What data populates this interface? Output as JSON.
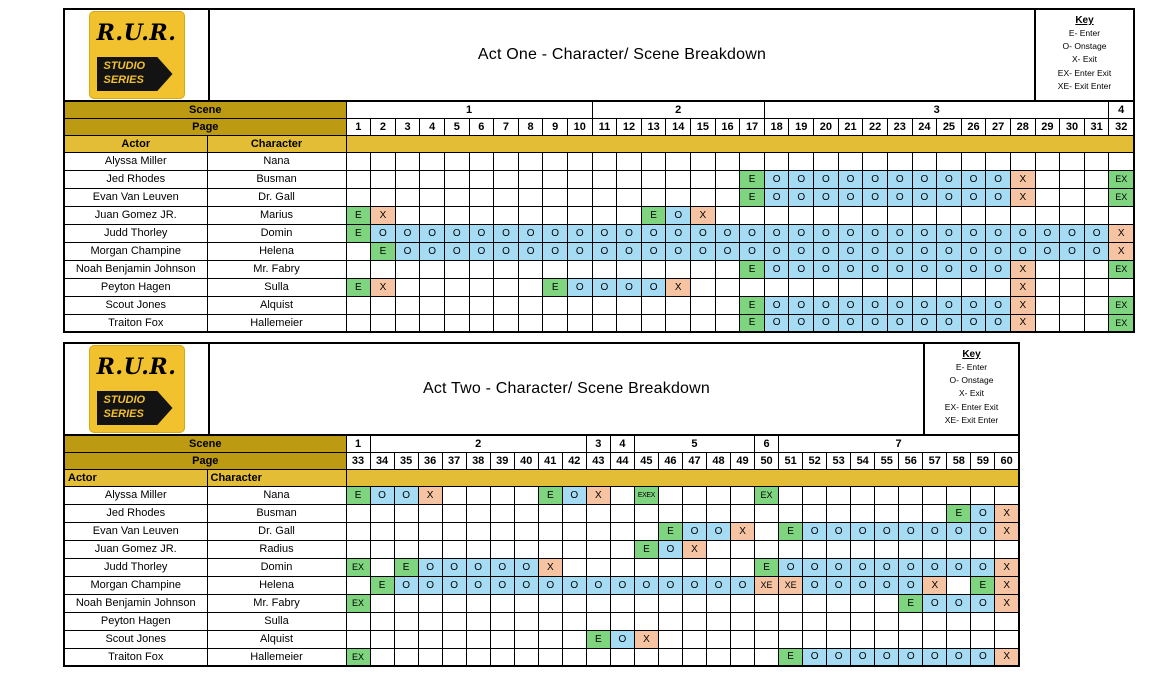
{
  "logo": {
    "title": "R.U.R.",
    "subtitle_line1": "STUDIO",
    "subtitle_line2": "SERIES"
  },
  "labels": {
    "scene": "Scene",
    "page": "Page",
    "actor": "Actor",
    "character": "Character"
  },
  "key": {
    "title": "Key",
    "entries": [
      "E- Enter",
      "O- Onstage",
      "X- Exit",
      "EX- Enter Exit",
      "XE- Exit Enter"
    ]
  },
  "colors": {
    "gold_dark": "#BC9B13",
    "gold_light": "#E3BD35",
    "logo_gold": "#F2C12E",
    "enter": "#7ED47F",
    "onstage": "#A6DBF4",
    "exit": "#F6C4A3"
  },
  "acts": [
    {
      "title": "Act One - Character/ Scene Breakdown",
      "scenes": [
        {
          "label": "1",
          "span": 10
        },
        {
          "label": "2",
          "span": 7
        },
        {
          "label": "3",
          "span": 14
        },
        {
          "label": "4",
          "span": 1
        }
      ],
      "pages": [
        1,
        2,
        3,
        4,
        5,
        6,
        7,
        8,
        9,
        10,
        11,
        12,
        13,
        14,
        15,
        16,
        17,
        18,
        19,
        20,
        21,
        22,
        23,
        24,
        25,
        26,
        27,
        28,
        29,
        30,
        31,
        32
      ],
      "rows": [
        {
          "actor": "Alyssa Miller",
          "character": "Nana",
          "cells": {}
        },
        {
          "actor": "Jed Rhodes",
          "character": "Busman",
          "cells": {
            "17": "E",
            "18": "O",
            "19": "O",
            "20": "O",
            "21": "O",
            "22": "O",
            "23": "O",
            "24": "O",
            "25": "O",
            "26": "O",
            "27": "O",
            "28": "X",
            "32": "EX"
          }
        },
        {
          "actor": "Evan Van Leuven",
          "character": "Dr. Gall",
          "cells": {
            "17": "E",
            "18": "O",
            "19": "O",
            "20": "O",
            "21": "O",
            "22": "O",
            "23": "O",
            "24": "O",
            "25": "O",
            "26": "O",
            "27": "O",
            "28": "X",
            "32": "EX"
          }
        },
        {
          "actor": "Juan Gomez JR.",
          "character": "Marius",
          "cells": {
            "1": "E",
            "2": "X",
            "13": "E",
            "14": "O",
            "15": "X"
          }
        },
        {
          "actor": "Judd Thorley",
          "character": "Domin",
          "cells": {
            "1": "E",
            "2": "O",
            "3": "O",
            "4": "O",
            "5": "O",
            "6": "O",
            "7": "O",
            "8": "O",
            "9": "O",
            "10": "O",
            "11": "O",
            "12": "O",
            "13": "O",
            "14": "O",
            "15": "O",
            "16": "O",
            "17": "O",
            "18": "O",
            "19": "O",
            "20": "O",
            "21": "O",
            "22": "O",
            "23": "O",
            "24": "O",
            "25": "O",
            "26": "O",
            "27": "O",
            "28": "O",
            "29": "O",
            "30": "O",
            "31": "O",
            "32": "X"
          }
        },
        {
          "actor": "Morgan Champine",
          "character": "Helena",
          "cells": {
            "2": "E",
            "3": "O",
            "4": "O",
            "5": "O",
            "6": "O",
            "7": "O",
            "8": "O",
            "9": "O",
            "10": "O",
            "11": "O",
            "12": "O",
            "13": "O",
            "14": "O",
            "15": "O",
            "16": "O",
            "17": "O",
            "18": "O",
            "19": "O",
            "20": "O",
            "21": "O",
            "22": "O",
            "23": "O",
            "24": "O",
            "25": "O",
            "26": "O",
            "27": "O",
            "28": "O",
            "29": "O",
            "30": "O",
            "31": "O",
            "32": "X"
          }
        },
        {
          "actor": "Noah Benjamin Johnson",
          "character": "Mr. Fabry",
          "cells": {
            "17": "E",
            "18": "O",
            "19": "O",
            "20": "O",
            "21": "O",
            "22": "O",
            "23": "O",
            "24": "O",
            "25": "O",
            "26": "O",
            "27": "O",
            "28": "X",
            "32": "EX"
          }
        },
        {
          "actor": "Peyton Hagen",
          "character": "Sulla",
          "cells": {
            "1": "E",
            "2": "X",
            "9": "E",
            "10": "O",
            "11": "O",
            "12": "O",
            "13": "O",
            "14": "X",
            "28": "X"
          }
        },
        {
          "actor": "Scout Jones",
          "character": "Alquist",
          "cells": {
            "17": "E",
            "18": "O",
            "19": "O",
            "20": "O",
            "21": "O",
            "22": "O",
            "23": "O",
            "24": "O",
            "25": "O",
            "26": "O",
            "27": "O",
            "28": "X",
            "32": "EX"
          }
        },
        {
          "actor": "Traiton Fox",
          "character": "Hallemeier",
          "cells": {
            "17": "E",
            "18": "O",
            "19": "O",
            "20": "O",
            "21": "O",
            "22": "O",
            "23": "O",
            "24": "O",
            "25": "O",
            "26": "O",
            "27": "O",
            "28": "X",
            "32": "EX"
          }
        }
      ]
    },
    {
      "title": "Act Two - Character/ Scene Breakdown",
      "scenes": [
        {
          "label": "1",
          "span": 1
        },
        {
          "label": "2",
          "span": 9
        },
        {
          "label": "3",
          "span": 1
        },
        {
          "label": "4",
          "span": 1
        },
        {
          "label": "5",
          "span": 5
        },
        {
          "label": "6",
          "span": 1
        },
        {
          "label": "7",
          "span": 10
        }
      ],
      "pages": [
        33,
        34,
        35,
        36,
        37,
        38,
        39,
        40,
        41,
        42,
        43,
        44,
        45,
        46,
        47,
        48,
        49,
        50,
        51,
        52,
        53,
        54,
        55,
        56,
        57,
        58,
        59,
        60
      ],
      "rows": [
        {
          "actor": "Alyssa Miller",
          "character": "Nana",
          "cells": {
            "33": "E",
            "34": "O",
            "35": "O",
            "36": "X",
            "41": "E",
            "42": "O",
            "43": "X",
            "45": "EXEX",
            "50": "EX"
          }
        },
        {
          "actor": "Jed Rhodes",
          "character": "Busman",
          "cells": {
            "58": "E",
            "59": "O",
            "60": "X"
          }
        },
        {
          "actor": "Evan Van Leuven",
          "character": "Dr. Gall",
          "cells": {
            "46": "E",
            "47": "O",
            "48": "O",
            "49": "X",
            "51": "E",
            "52": "O",
            "53": "O",
            "54": "O",
            "55": "O",
            "56": "O",
            "57": "O",
            "58": "O",
            "59": "O",
            "60": "X"
          }
        },
        {
          "actor": "Juan Gomez JR.",
          "character": "Radius",
          "cells": {
            "45": "E",
            "46": "O",
            "47": "X"
          }
        },
        {
          "actor": "Judd Thorley",
          "character": "Domin",
          "cells": {
            "33": "EX",
            "35": "E",
            "36": "O",
            "37": "O",
            "38": "O",
            "39": "O",
            "40": "O",
            "41": "X",
            "50": "E",
            "51": "O",
            "52": "O",
            "53": "O",
            "54": "O",
            "55": "O",
            "56": "O",
            "57": "O",
            "58": "O",
            "59": "O",
            "60": "X"
          }
        },
        {
          "actor": "Morgan Champine",
          "character": "Helena",
          "cells": {
            "34": "E",
            "35": "O",
            "36": "O",
            "37": "O",
            "38": "O",
            "39": "O",
            "40": "O",
            "41": "O",
            "42": "O",
            "43": "O",
            "44": "O",
            "45": "O",
            "46": "O",
            "47": "O",
            "48": "O",
            "49": "O",
            "50": "XE",
            "51": "XE",
            "52": "O",
            "53": "O",
            "54": "O",
            "55": "O",
            "56": "O",
            "57": "X",
            "59": "E",
            "60": "X"
          }
        },
        {
          "actor": "Noah Benjamin Johnson",
          "character": "Mr. Fabry",
          "cells": {
            "33": "EX",
            "56": "E",
            "57": "O",
            "58": "O",
            "59": "O",
            "60": "X"
          }
        },
        {
          "actor": "Peyton Hagen",
          "character": "Sulla",
          "cells": {}
        },
        {
          "actor": "Scout Jones",
          "character": "Alquist",
          "cells": {
            "43": "E",
            "44": "O",
            "45": "X"
          }
        },
        {
          "actor": "Traiton Fox",
          "character": "Hallemeier",
          "cells": {
            "33": "EX",
            "51": "E",
            "52": "O",
            "53": "O",
            "54": "O",
            "55": "O",
            "56": "O",
            "57": "O",
            "58": "O",
            "59": "O",
            "60": "X"
          }
        }
      ]
    }
  ]
}
